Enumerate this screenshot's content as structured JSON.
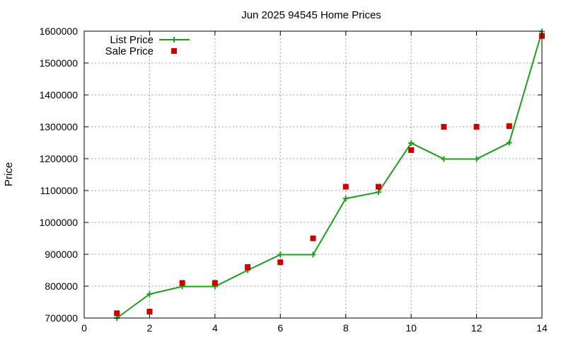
{
  "chart_data": {
    "type": "line",
    "title": "Jun 2025 94545 Home Prices",
    "xlabel": "",
    "ylabel": "Price",
    "xlim": [
      0,
      14
    ],
    "ylim": [
      700000,
      1600000
    ],
    "xticks": [
      0,
      2,
      4,
      6,
      8,
      10,
      12,
      14
    ],
    "yticks": [
      700000,
      800000,
      900000,
      1000000,
      1100000,
      1200000,
      1300000,
      1400000,
      1500000,
      1600000
    ],
    "grid": true,
    "legend_position": "top-left",
    "series": [
      {
        "name": "List Price",
        "style": "linespoints",
        "marker": "plus",
        "color": "#1aa01a",
        "x": [
          1,
          2,
          3,
          4,
          5,
          6,
          7,
          8,
          9,
          10,
          11,
          12,
          13,
          14
        ],
        "y": [
          700000,
          775000,
          799000,
          799000,
          850000,
          899000,
          899000,
          1075000,
          1095000,
          1249000,
          1199000,
          1199000,
          1250000,
          1599000
        ]
      },
      {
        "name": "Sale Price",
        "style": "points",
        "marker": "square",
        "color": "#cc0000",
        "x": [
          1,
          2,
          3,
          4,
          5,
          6,
          7,
          8,
          9,
          10,
          11,
          12,
          13,
          14
        ],
        "y": [
          715000,
          720000,
          810000,
          810000,
          860000,
          875000,
          950000,
          1112000,
          1112000,
          1227000,
          1300000,
          1300000,
          1302000,
          1585000
        ]
      }
    ]
  }
}
